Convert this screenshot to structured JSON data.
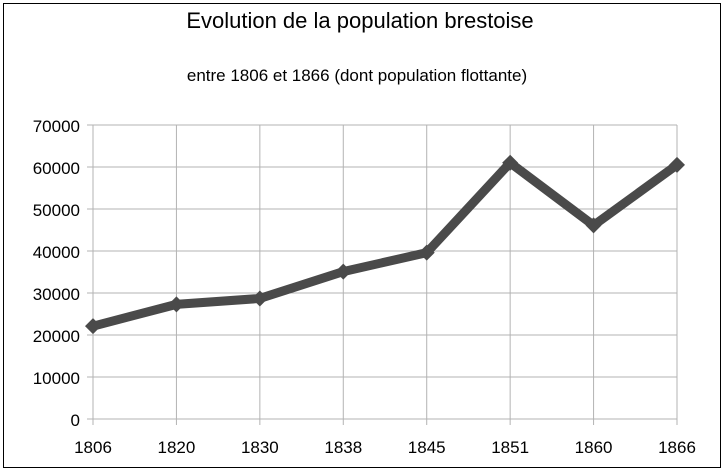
{
  "chart_data": {
    "type": "line",
    "title": "Evolution de la population brestoise",
    "subtitle": "entre 1806 et 1866 (dont population flottante)",
    "xlabel": "",
    "ylabel": "",
    "categories": [
      "1806",
      "1820",
      "1830",
      "1838",
      "1845",
      "1851",
      "1860",
      "1866"
    ],
    "series": [
      {
        "name": "Population",
        "values": [
          22100,
          27300,
          28700,
          35100,
          39600,
          61000,
          46100,
          60500
        ],
        "color": "#4a4a4a"
      }
    ],
    "ylim": [
      0,
      70000
    ],
    "yticks": [
      "0",
      "10000",
      "20000",
      "30000",
      "40000",
      "50000",
      "60000",
      "70000"
    ],
    "grid": true,
    "legend": "none"
  }
}
